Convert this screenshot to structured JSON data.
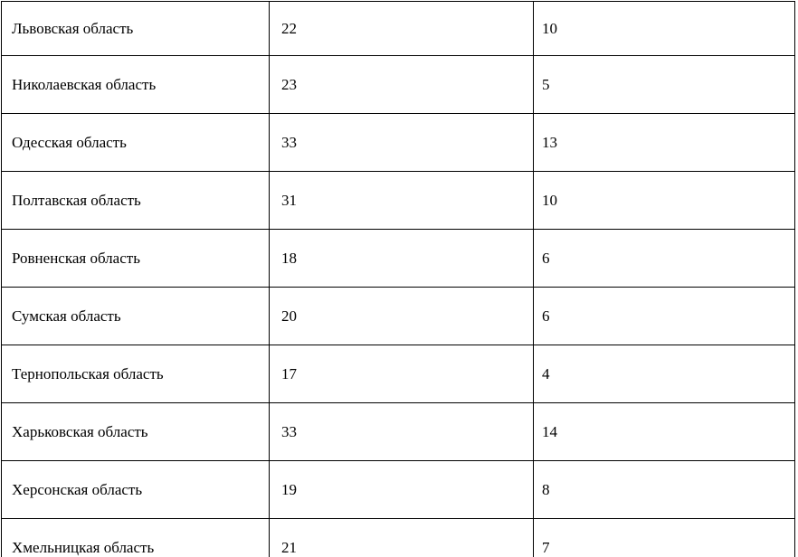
{
  "table": {
    "border_color": "#000000",
    "background_color": "#ffffff",
    "text_color": "#000000",
    "rows": [
      [
        "Львовская область",
        "22",
        "10"
      ],
      [
        "Николаевская область",
        "23",
        "5"
      ],
      [
        "Одесская область",
        "33",
        "13"
      ],
      [
        "Полтавская область",
        "31",
        "10"
      ],
      [
        "Ровненская область",
        "18",
        "6"
      ],
      [
        "Сумская область",
        "20",
        "6"
      ],
      [
        "Тернопольская область",
        "17",
        "4"
      ],
      [
        "Харьковская область",
        "33",
        "14"
      ],
      [
        "Херсонская область",
        "19",
        "8"
      ],
      [
        "Хмельницкая область",
        "21",
        "7"
      ]
    ]
  }
}
